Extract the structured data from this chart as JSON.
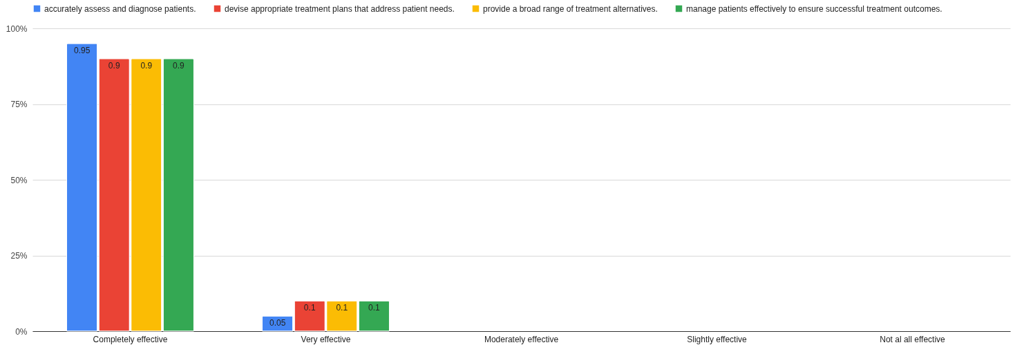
{
  "chart_data": {
    "type": "bar",
    "categories": [
      "Completely effective",
      "Very effective",
      "Moderately effective",
      "Slightly effective",
      "Not al all effective"
    ],
    "series": [
      {
        "name": "accurately assess and diagnose patients.",
        "color": "#4285f4",
        "values": [
          0.95,
          0.05,
          null,
          null,
          null
        ]
      },
      {
        "name": "devise appropriate treatment plans that address patient needs.",
        "color": "#ea4335",
        "values": [
          0.9,
          0.1,
          null,
          null,
          null
        ]
      },
      {
        "name": "provide a broad range of treatment alternatives.",
        "color": "#fbbc04",
        "values": [
          0.9,
          0.1,
          null,
          null,
          null
        ]
      },
      {
        "name": "manage patients effectively to ensure successful treatment outcomes.",
        "color": "#34a853",
        "values": [
          0.9,
          0.1,
          null,
          null,
          null
        ]
      }
    ],
    "ylim": [
      0,
      1
    ],
    "yticks": [
      {
        "value": 0,
        "label": "0%"
      },
      {
        "value": 0.25,
        "label": "25%"
      },
      {
        "value": 0.5,
        "label": "50%"
      },
      {
        "value": 0.75,
        "label": "75%"
      },
      {
        "value": 1,
        "label": "100%"
      }
    ],
    "grid": "y",
    "legend": "top",
    "data_labels": true
  }
}
